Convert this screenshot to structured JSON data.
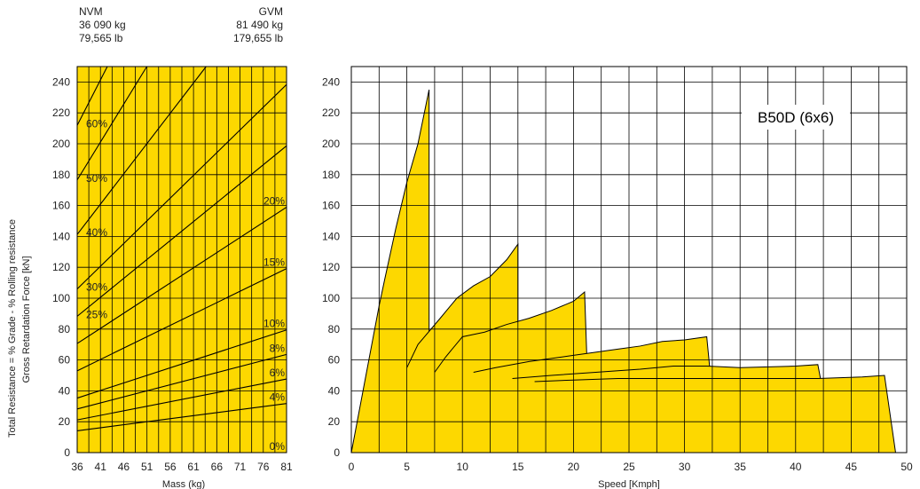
{
  "header": {
    "nvm_label": "NVM",
    "nvm_kg": "36 090 kg",
    "nvm_lb": "79,565 lb",
    "gvm_label": "GVM",
    "gvm_kg": "81 490 kg",
    "gvm_lb": "179,655 lb"
  },
  "colors": {
    "fill": "#fdd800",
    "line": "#000000",
    "text": "#222222"
  },
  "chart_data": [
    {
      "type": "line",
      "chart": "grade-chart",
      "xlabel": "Mass (kg)",
      "ylabel_line1": "Total Resistance = % Grade - % Rolling resistance",
      "ylabel_line2": "Gross Retardation Force [kN]",
      "xlim": [
        36,
        81
      ],
      "ylim": [
        0,
        250
      ],
      "x_ticks": [
        36,
        41,
        46,
        51,
        56,
        61,
        66,
        71,
        76,
        81
      ],
      "y_ticks": [
        0,
        20,
        40,
        60,
        80,
        100,
        120,
        140,
        160,
        180,
        200,
        220,
        240
      ],
      "grid": true,
      "grade_lines": [
        {
          "label": "0%",
          "grade": 0
        },
        {
          "label": "4%",
          "grade": 4
        },
        {
          "label": "6%",
          "grade": 6
        },
        {
          "label": "8%",
          "grade": 8
        },
        {
          "label": "10%",
          "grade": 10
        },
        {
          "label": "15%",
          "grade": 15
        },
        {
          "label": "20%",
          "grade": 20
        },
        {
          "label": "25%",
          "grade": 25
        },
        {
          "label": "30%",
          "grade": 30
        },
        {
          "label": "40%",
          "grade": 40
        },
        {
          "label": "50%",
          "grade": 50
        },
        {
          "label": "60%",
          "grade": 60
        }
      ]
    },
    {
      "type": "area",
      "chart": "retardation-chart",
      "title": "B50D (6x6)",
      "xlabel": "Speed [Kmph]",
      "xlim": [
        0,
        50
      ],
      "ylim": [
        0,
        250
      ],
      "x_ticks": [
        0,
        5,
        10,
        15,
        20,
        25,
        30,
        35,
        40,
        45,
        50
      ],
      "y_ticks": [
        0,
        20,
        40,
        60,
        80,
        100,
        120,
        140,
        160,
        180,
        200,
        220,
        240
      ],
      "grid": true,
      "series": [
        {
          "values": [
            [
              0,
              0
            ],
            [
              2.5,
              95
            ],
            [
              3,
              112
            ],
            [
              4,
              145
            ],
            [
              5,
              175
            ],
            [
              6,
              200
            ],
            [
              7,
              235
            ],
            [
              7,
              0
            ]
          ]
        },
        {
          "values": [
            [
              5,
              55
            ],
            [
              6,
              70
            ],
            [
              8,
              87
            ],
            [
              9.5,
              100
            ],
            [
              11,
              108
            ],
            [
              12.5,
              114
            ],
            [
              14,
              125
            ],
            [
              15,
              135
            ],
            [
              15,
              0
            ]
          ]
        },
        {
          "values": [
            [
              7.5,
              52
            ],
            [
              8.5,
              62
            ],
            [
              10,
              75
            ],
            [
              12,
              78
            ],
            [
              14,
              83
            ],
            [
              16,
              87
            ],
            [
              18,
              92
            ],
            [
              20,
              98
            ],
            [
              21,
              104
            ],
            [
              21.5,
              0
            ]
          ]
        },
        {
          "values": [
            [
              11,
              52
            ],
            [
              13,
              55
            ],
            [
              16,
              59
            ],
            [
              20,
              63
            ],
            [
              24,
              67
            ],
            [
              26,
              69
            ],
            [
              28,
              72
            ],
            [
              30,
              73
            ],
            [
              32,
              75
            ],
            [
              33,
              0
            ]
          ]
        },
        {
          "values": [
            [
              14.5,
              48
            ],
            [
              18,
              50
            ],
            [
              22,
              52
            ],
            [
              26,
              54
            ],
            [
              29,
              56
            ],
            [
              32,
              56
            ],
            [
              35,
              55
            ],
            [
              40,
              56
            ],
            [
              42,
              57
            ],
            [
              43.5,
              0
            ]
          ]
        },
        {
          "values": [
            [
              16.5,
              46
            ],
            [
              20,
              47
            ],
            [
              24,
              48
            ],
            [
              30,
              48
            ],
            [
              36,
              48
            ],
            [
              42,
              48
            ],
            [
              46,
              49
            ],
            [
              48,
              50
            ],
            [
              49,
              0
            ]
          ]
        }
      ]
    }
  ]
}
